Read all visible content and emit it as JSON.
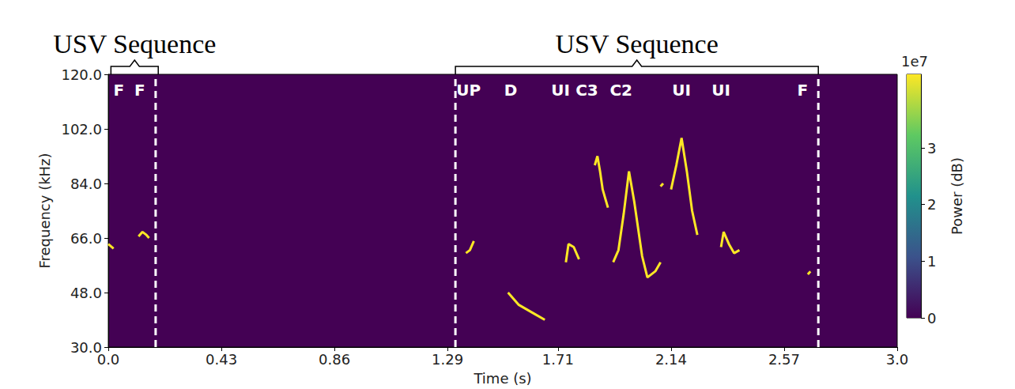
{
  "chart_data": {
    "type": "spectrogram",
    "x_label": "Time (s)",
    "y_label": "Frequency (kHz)",
    "xlim": [
      0,
      3
    ],
    "ylim": [
      30,
      120
    ],
    "xticks": [
      {
        "value": 0,
        "label": "0.0"
      },
      0.43,
      0.86,
      1.29,
      1.71,
      2.14,
      2.57,
      {
        "value": 3,
        "label": "3.0"
      }
    ],
    "yticks": [
      {
        "value": 30,
        "label": "30.0"
      },
      {
        "value": 48,
        "label": "48.0"
      },
      {
        "value": 66,
        "label": "66.0"
      },
      {
        "value": 84,
        "label": "84.0"
      },
      {
        "value": 102,
        "label": "102.0"
      },
      {
        "value": 120,
        "label": "120.0"
      }
    ],
    "grid": false,
    "colorbar_label": "Power (dB)",
    "colorbar_offset_label": "1e7",
    "colorbar_range": [
      0,
      43000000
    ],
    "colorbar_ticks": [
      0,
      {
        "value": 10000000,
        "label": "1"
      },
      {
        "value": 20000000,
        "label": "2"
      },
      {
        "value": 30000000,
        "label": "3"
      }
    ],
    "series": [
      {
        "color": "#fde725",
        "x": [
          0.0,
          0.02
        ],
        "values": [
          64,
          62.5
        ]
      },
      {
        "color": "#fde725",
        "x": [
          0.115,
          0.13,
          0.145,
          0.155
        ],
        "values": [
          66.5,
          68,
          67,
          66
        ]
      },
      {
        "color": "#fde725",
        "x": [
          1.36,
          1.375,
          1.39
        ],
        "values": [
          61,
          62,
          65
        ]
      },
      {
        "color": "#fde725",
        "x": [
          1.52,
          1.56,
          1.62,
          1.66
        ],
        "values": [
          48,
          44,
          41,
          39
        ]
      },
      {
        "color": "#fde725",
        "x": [
          1.74,
          1.75,
          1.77,
          1.79
        ],
        "values": [
          58,
          64,
          63,
          59
        ]
      },
      {
        "color": "#fde725",
        "x": [
          1.85,
          1.86,
          1.87,
          1.88,
          1.9
        ],
        "values": [
          90,
          93,
          88,
          82,
          76
        ]
      },
      {
        "color": "#fde725",
        "x": [
          1.92,
          1.94,
          1.96,
          1.98,
          2.0,
          2.03,
          2.05,
          2.08,
          2.1
        ],
        "values": [
          58,
          62,
          74,
          88,
          78,
          60,
          53,
          55,
          58
        ]
      },
      {
        "color": "#fde725",
        "x": [
          2.1,
          2.11
        ],
        "values": [
          83,
          84
        ]
      },
      {
        "color": "#fde725",
        "x": [
          2.14,
          2.16,
          2.18,
          2.2,
          2.22,
          2.24
        ],
        "values": [
          82,
          90,
          99,
          88,
          75,
          67
        ]
      },
      {
        "color": "#fde725",
        "x": [
          2.33,
          2.34,
          2.36,
          2.38,
          2.4
        ],
        "values": [
          63,
          68,
          64,
          61,
          62
        ]
      },
      {
        "color": "#fde725",
        "x": [
          2.66,
          2.67
        ],
        "values": [
          54,
          55
        ]
      }
    ],
    "annotations": [
      {
        "text": "F",
        "x": 0.04
      },
      {
        "text": "F",
        "x": 0.12
      },
      {
        "text": "UP",
        "x": 1.37
      },
      {
        "text": "D",
        "x": 1.53
      },
      {
        "text": "UI",
        "x": 1.72
      },
      {
        "text": "C3",
        "x": 1.82
      },
      {
        "text": "C2",
        "x": 1.95
      },
      {
        "text": "UI",
        "x": 2.18
      },
      {
        "text": "UI",
        "x": 2.33
      },
      {
        "text": "F",
        "x": 2.64
      }
    ],
    "boundaries": [
      0.18,
      1.32,
      2.7
    ],
    "sequences": [
      {
        "label": "USV Sequence",
        "start": 0.01,
        "end": 0.19
      },
      {
        "label": "USV Sequence",
        "start": 1.32,
        "end": 2.7
      }
    ]
  }
}
